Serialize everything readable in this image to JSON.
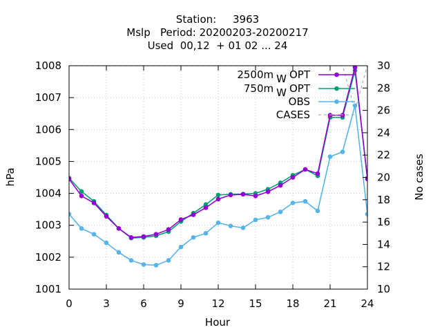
{
  "chart_data": {
    "type": "line",
    "title_lines": [
      "Station:     3963",
      "Mslp   Period: 20200203-20200217",
      "Used  00,12  + 01 02 ... 24"
    ],
    "xlabel": "Hour",
    "ylabel": "hPa",
    "y2label": "No cases",
    "xlim": [
      0,
      24
    ],
    "ylim": [
      1001,
      1008
    ],
    "y2lim": [
      10,
      30
    ],
    "xticks": [
      "0",
      "3",
      "6",
      "9",
      "12",
      "15",
      "18",
      "21",
      "24"
    ],
    "yticks": [
      "1001",
      "1002",
      "1003",
      "1004",
      "1005",
      "1006",
      "1007",
      "1008"
    ],
    "y2ticks": [
      "10",
      "12",
      "14",
      "16",
      "18",
      "20",
      "22",
      "24",
      "26",
      "28",
      "30"
    ],
    "legend_position": "top-right",
    "x": [
      0,
      1,
      2,
      3,
      4,
      5,
      6,
      7,
      8,
      9,
      10,
      11,
      12,
      13,
      14,
      15,
      16,
      17,
      18,
      19,
      20,
      21,
      22,
      23,
      24
    ],
    "series": [
      {
        "name": "2500m",
        "name_sub": "W",
        "name_suffix": "OPT",
        "color": "#9400d3",
        "axis": "y1",
        "values": [
          1004.45,
          1003.92,
          1003.7,
          1003.28,
          1002.9,
          1002.62,
          1002.65,
          1002.72,
          1002.87,
          1003.18,
          1003.33,
          1003.55,
          1003.82,
          1003.95,
          1003.97,
          1003.92,
          1004.05,
          1004.25,
          1004.5,
          1004.75,
          1004.62,
          1006.45,
          1006.45,
          1007.95,
          1004.45
        ]
      },
      {
        "name": "750m",
        "name_sub": "W",
        "name_suffix": "OPT",
        "color": "#009e73",
        "axis": "y1",
        "values": [
          1004.48,
          1004.06,
          1003.75,
          1003.32,
          1002.9,
          1002.6,
          1002.62,
          1002.67,
          1002.8,
          1003.12,
          1003.38,
          1003.65,
          1003.95,
          1003.97,
          1003.98,
          1004.0,
          1004.13,
          1004.33,
          1004.57,
          1004.75,
          1004.55,
          1006.38,
          1006.38,
          1007.85,
          1004.48
        ]
      },
      {
        "name": "OBS",
        "color": "#56b4e9",
        "axis": "y1",
        "values": [
          1003.35,
          1002.9,
          1002.72,
          1002.45,
          1002.15,
          1001.9,
          1001.77,
          1001.75,
          1001.9,
          1002.32,
          1002.62,
          1002.75,
          1003.08,
          1002.98,
          1002.92,
          1003.17,
          1003.25,
          1003.42,
          1003.7,
          1003.75,
          1003.45,
          1005.15,
          1005.3,
          1006.75,
          1003.35
        ]
      },
      {
        "name": "CASES",
        "color": "#aaaaaa",
        "axis": "y2",
        "dashed": true,
        "values": [
          30,
          30,
          30,
          30,
          30,
          30,
          30,
          30,
          30,
          30,
          30,
          30,
          30,
          30,
          30,
          30,
          30,
          30,
          30,
          30,
          30,
          30,
          30,
          26,
          30
        ]
      }
    ]
  }
}
